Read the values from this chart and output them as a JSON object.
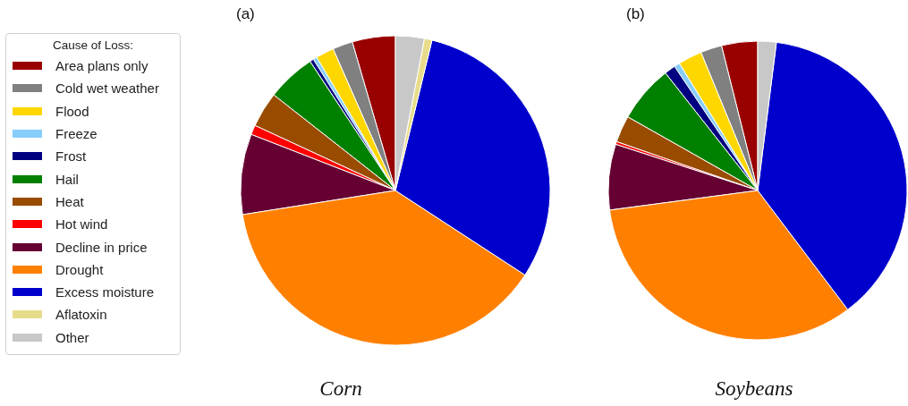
{
  "chart_data": {
    "type": "pie",
    "legend": "left",
    "legend_title": "Cause of Loss:",
    "annotations": [
      "(a)",
      "(b)"
    ],
    "categories": [
      "Area plans only",
      "Cold wet weather",
      "Flood",
      "Freeze",
      "Frost",
      "Hail",
      "Heat",
      "Hot wind",
      "Decline in price",
      "Drought",
      "Excess moisture",
      "Aflatoxin",
      "Other"
    ],
    "colors": [
      "#990000",
      "#808080",
      "#ffd700",
      "#87cefa",
      "#000080",
      "#008000",
      "#994c00",
      "#ff0000",
      "#660033",
      "#ff8000",
      "#0000cc",
      "#e8dc8a",
      "#c8c8c8"
    ],
    "series": [
      {
        "name": "Corn",
        "values": [
          4.5,
          2.1,
          1.9,
          0.4,
          0.4,
          5.1,
          3.7,
          1.0,
          8.4,
          38.3,
          30.4,
          0.8,
          3.0
        ]
      },
      {
        "name": "Soybeans",
        "values": [
          3.9,
          2.3,
          2.6,
          0.6,
          1.2,
          6.2,
          2.9,
          0.3,
          7.1,
          33.2,
          37.7,
          0,
          2.0
        ]
      }
    ]
  }
}
